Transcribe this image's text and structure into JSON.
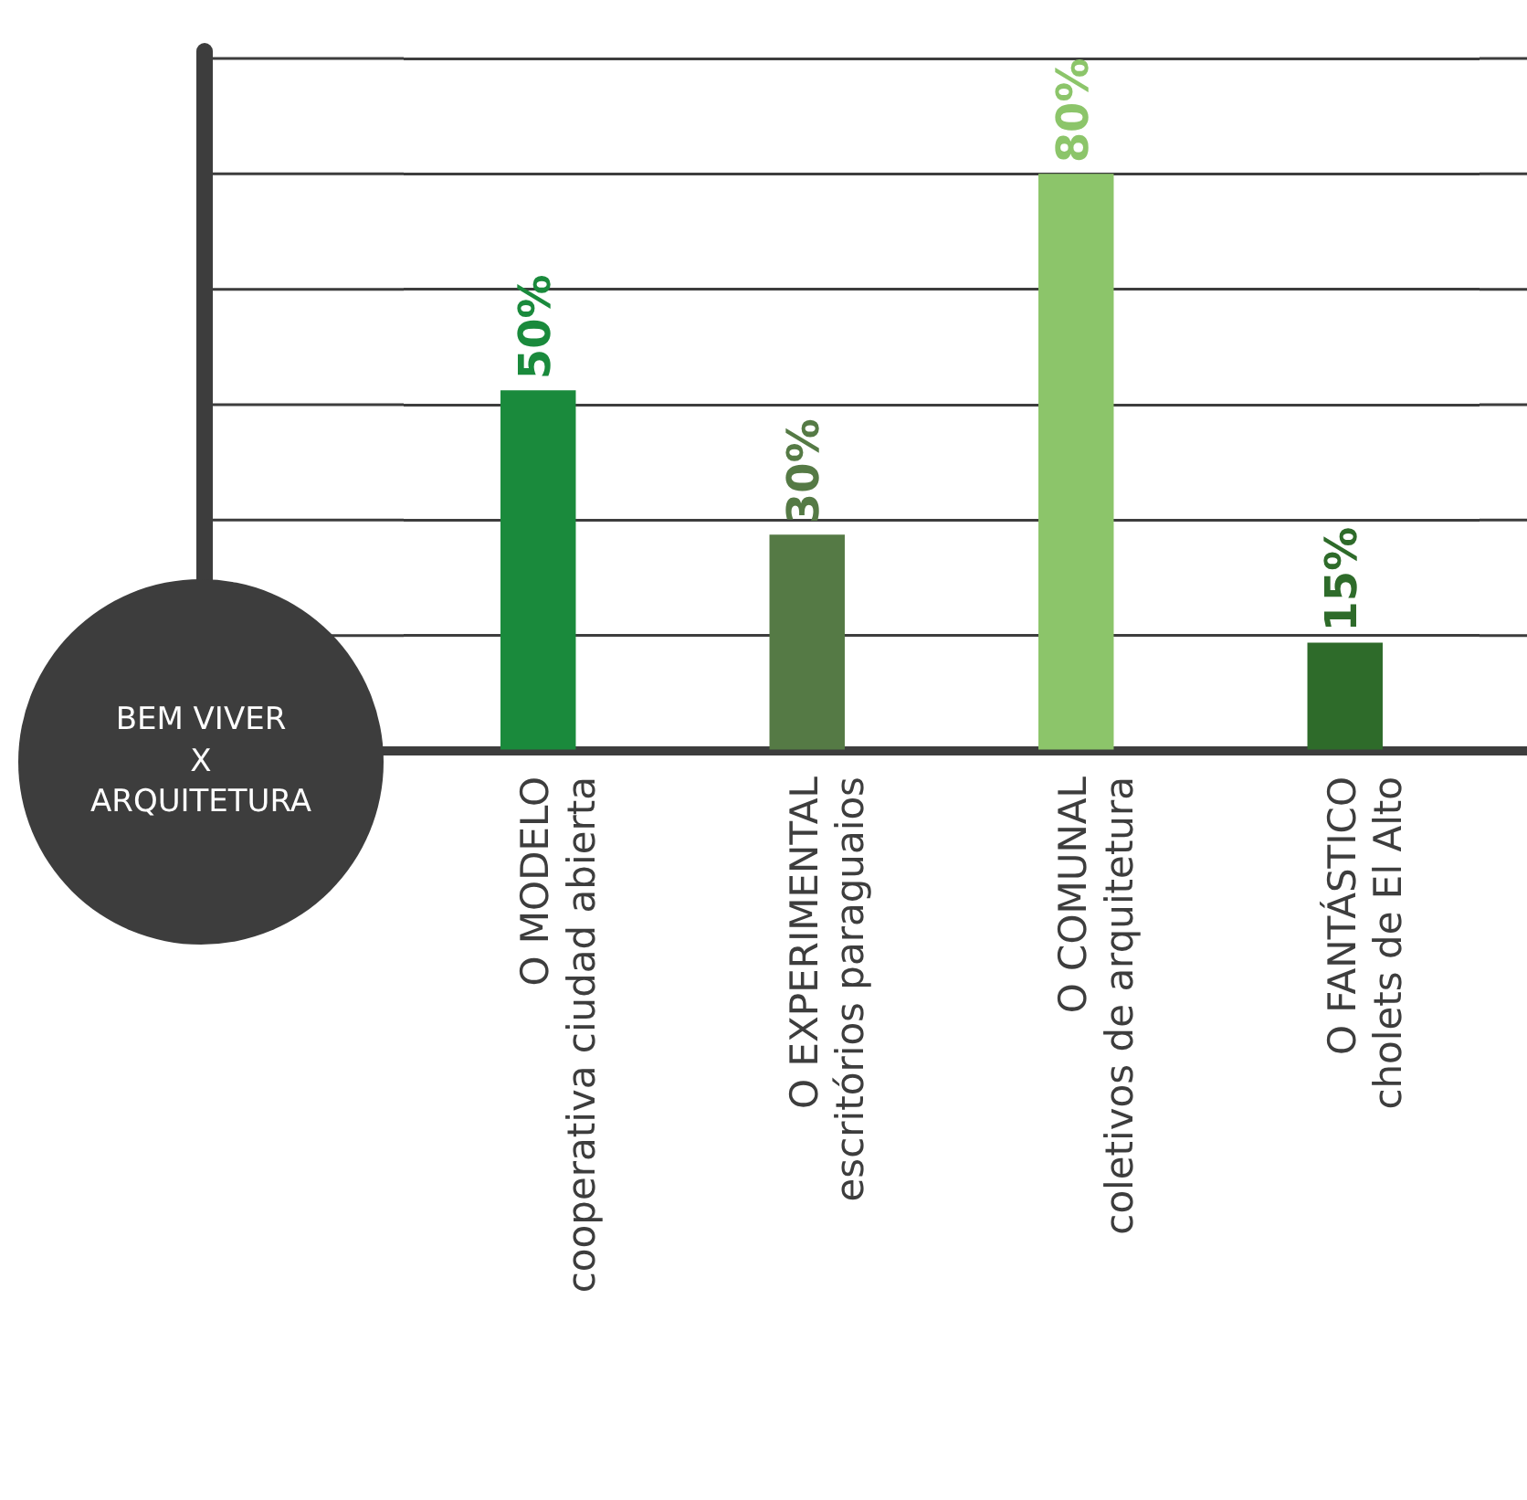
{
  "chart_data": {
    "type": "bar",
    "categories": [
      "O MODELO\ncooperativa ciudad abierta",
      "O EXPERIMENTAL\nescritórios paraguaios",
      "O COMUNAL\ncoletivos de arquitetura",
      "O FANTÁSTICO\ncholets de El Alto"
    ],
    "values": [
      50,
      30,
      80,
      15
    ],
    "colors": [
      "#1a8a3c",
      "#557a45",
      "#8cc56a",
      "#2e6b2a"
    ],
    "value_labels": [
      "50%",
      "30%",
      "80%",
      "15%"
    ],
    "ylim": [
      0,
      96
    ],
    "yticks": [
      {
        "value": 0,
        "label": null
      },
      {
        "value": 16,
        "label": null
      },
      {
        "value": 32,
        "label": null
      },
      {
        "value": 48,
        "label": null
      },
      {
        "value": 64,
        "label": null
      },
      {
        "value": 80,
        "label": null
      },
      {
        "value": 96,
        "label": null
      }
    ],
    "grid": "y",
    "tick_labels": "x",
    "annotations": [
      "BEM VIVER\nX\nARQUITETURA"
    ]
  }
}
